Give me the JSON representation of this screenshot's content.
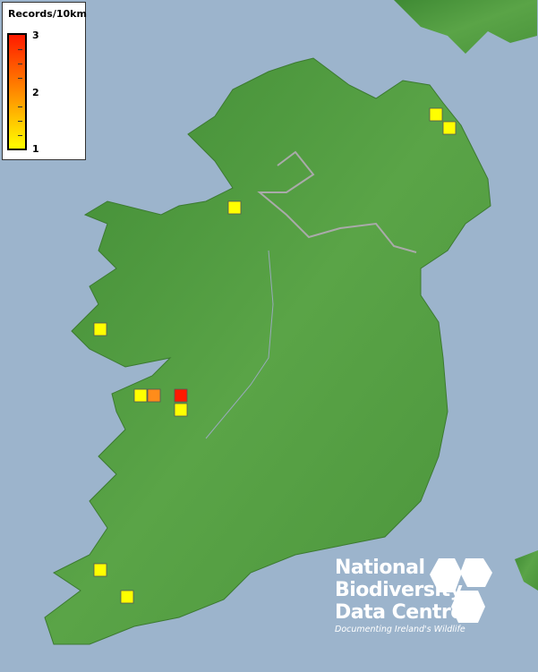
{
  "legend": {
    "title": "Records/10km",
    "max_label": "3",
    "mid_label": "2",
    "min_label": "1",
    "colors": {
      "low": "#ffff00",
      "mid": "#ff8a00",
      "high": "#ff1a00"
    }
  },
  "records": [
    {
      "count": 1,
      "color": "#ffff00"
    },
    {
      "count": 1,
      "color": "#ffff00"
    },
    {
      "count": 1,
      "color": "#ffff00"
    },
    {
      "count": 1,
      "color": "#ffff00"
    },
    {
      "count": 1,
      "color": "#ffff00"
    },
    {
      "count": 2,
      "color": "#ff8c1a"
    },
    {
      "count": 3,
      "color": "#ff1a00"
    },
    {
      "count": 1,
      "color": "#ffff00"
    },
    {
      "count": 1,
      "color": "#ffff00"
    },
    {
      "count": 1,
      "color": "#ffff00"
    }
  ],
  "colors": {
    "sea": "#9cb4cc",
    "land": "#4f9a3e"
  },
  "logo": {
    "line1": "National",
    "line2": "Biodiversity",
    "line3": "Data Centre",
    "tagline": "Documenting Ireland's Wildlife"
  }
}
